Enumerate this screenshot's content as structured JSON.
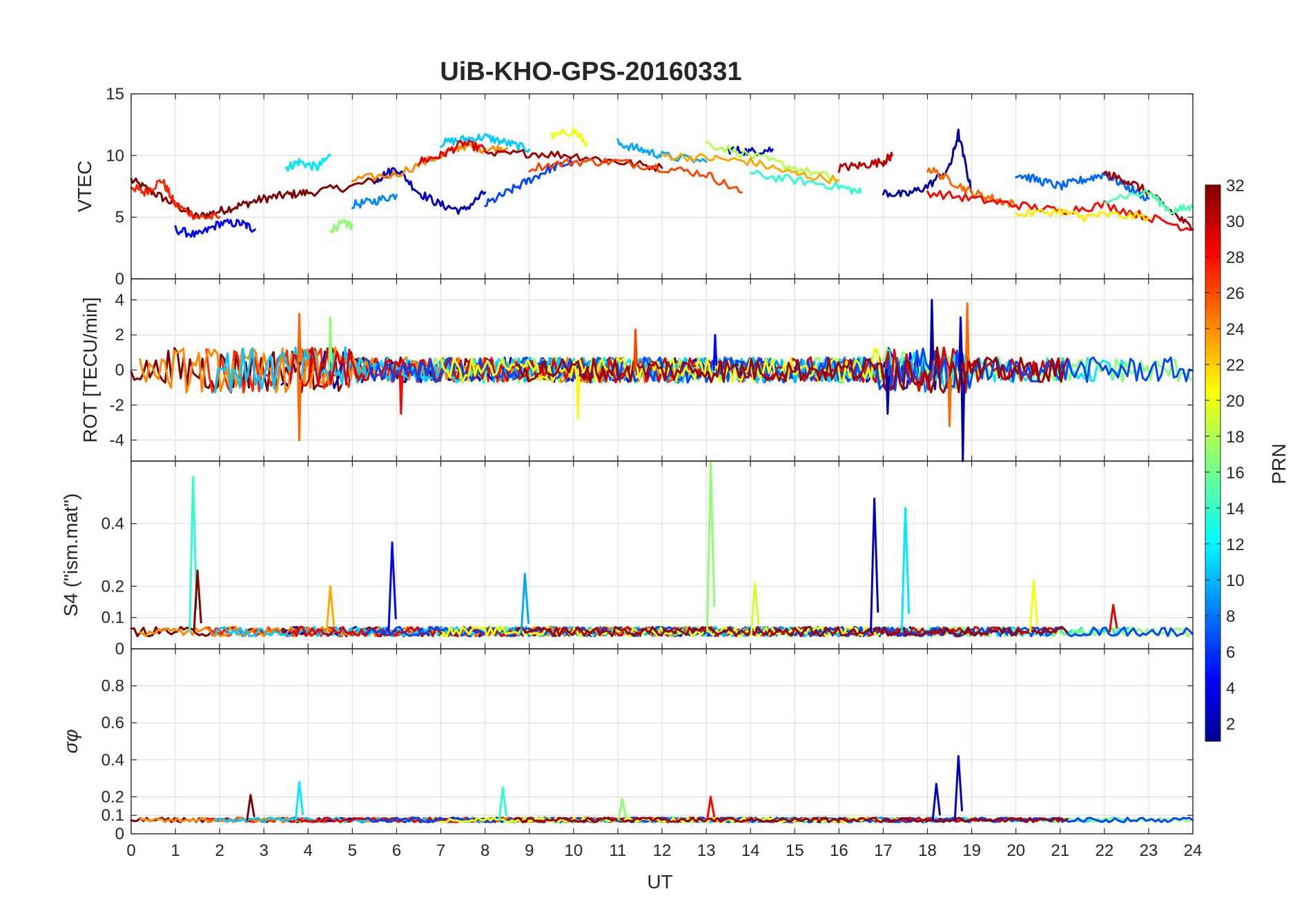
{
  "chart_data": {
    "title": "UiB-KHO-GPS-20160331",
    "type": "line",
    "x_axis": {
      "label": "UT",
      "range": [
        0,
        24
      ],
      "ticks": [
        0,
        1,
        2,
        3,
        4,
        5,
        6,
        7,
        8,
        9,
        10,
        11,
        12,
        13,
        14,
        15,
        16,
        17,
        18,
        19,
        20,
        21,
        22,
        23,
        24
      ]
    },
    "grid": true,
    "colorbar": {
      "label": "PRN",
      "placement": "right",
      "range": [
        1,
        32
      ],
      "ticks": [
        2,
        4,
        6,
        8,
        10,
        12,
        14,
        16,
        18,
        20,
        22,
        24,
        26,
        28,
        30,
        32
      ],
      "colormap": "jet"
    },
    "panels": [
      {
        "id": "vtec",
        "ylabel": "VTEC",
        "ylim": [
          0,
          15
        ],
        "yticks": [
          0,
          5,
          10,
          15
        ],
        "series": [
          {
            "prn": 32,
            "x": [
              0,
              0.5,
              1,
              1.5,
              2,
              2.5,
              3,
              3.5,
              4,
              5,
              6
            ],
            "y": [
              8,
              7,
              6,
              5,
              5.5,
              6,
              6.5,
              6.8,
              7,
              7.5,
              8.5
            ]
          },
          {
            "prn": 27,
            "x": [
              0,
              0.3,
              0.7,
              1,
              1.5,
              2
            ],
            "y": [
              7.5,
              7,
              8,
              6,
              5,
              5
            ]
          },
          {
            "prn": 5,
            "x": [
              1,
              1.5,
              2,
              2.5,
              2.8
            ],
            "y": [
              4,
              3.5,
              4.5,
              4.5,
              4
            ]
          },
          {
            "prn": 12,
            "x": [
              3.5,
              3.8,
              4.2,
              4.5
            ],
            "y": [
              9,
              9.5,
              9,
              10
            ]
          },
          {
            "prn": 17,
            "x": [
              4.5,
              4.8,
              5
            ],
            "y": [
              4,
              4.5,
              4.3
            ]
          },
          {
            "prn": 9,
            "x": [
              5,
              5.5,
              6
            ],
            "y": [
              6,
              6.3,
              6.8
            ]
          },
          {
            "prn": 3,
            "x": [
              5.5,
              6,
              6.5,
              7,
              7.5,
              8
            ],
            "y": [
              8,
              9,
              7,
              6,
              5.5,
              7
            ]
          },
          {
            "prn": 24,
            "x": [
              5,
              6,
              7,
              7.5,
              8,
              8.5
            ],
            "y": [
              8,
              8.5,
              10,
              10.8,
              10.5,
              10.6
            ]
          },
          {
            "prn": 11,
            "x": [
              7,
              7.5,
              8,
              8.5,
              9
            ],
            "y": [
              11,
              11.3,
              11.5,
              11,
              10.5
            ]
          },
          {
            "prn": 29,
            "x": [
              6.5,
              7,
              7.5,
              8
            ],
            "y": [
              9.5,
              10,
              11,
              10.5
            ]
          },
          {
            "prn": 7,
            "x": [
              8,
              8.5,
              9,
              9.5,
              10
            ],
            "y": [
              6,
              7,
              8,
              9,
              9.5
            ]
          },
          {
            "prn": 20,
            "x": [
              9.5,
              10,
              10.3
            ],
            "y": [
              11.5,
              12,
              11
            ]
          },
          {
            "prn": 31,
            "x": [
              8,
              9,
              10,
              11,
              12
            ],
            "y": [
              10,
              10.2,
              10,
              9.5,
              9
            ]
          },
          {
            "prn": 26,
            "x": [
              9,
              10,
              11,
              12,
              13,
              13.8
            ],
            "y": [
              9,
              9.5,
              9.5,
              9,
              8.5,
              7
            ]
          },
          {
            "prn": 10,
            "x": [
              11,
              11.5,
              12,
              13
            ],
            "y": [
              11,
              10.5,
              10,
              9.5
            ]
          },
          {
            "prn": 4,
            "x": [
              13.5,
              14,
              14.5
            ],
            "y": [
              10.5,
              10.3,
              10.5
            ]
          },
          {
            "prn": 18,
            "x": [
              13,
              14,
              15,
              16
            ],
            "y": [
              11,
              10,
              9,
              8
            ]
          },
          {
            "prn": 14,
            "x": [
              14,
              15,
              16,
              16.5
            ],
            "y": [
              8.5,
              8,
              7.5,
              7
            ]
          },
          {
            "prn": 23,
            "x": [
              12,
              13,
              14,
              15,
              16
            ],
            "y": [
              10,
              9.8,
              9.5,
              8.5,
              8
            ]
          },
          {
            "prn": 30,
            "x": [
              16,
              16.5,
              17,
              17.2
            ],
            "y": [
              9,
              9.2,
              9.5,
              10
            ]
          },
          {
            "prn": 2,
            "x": [
              17,
              17.5,
              18,
              18.5,
              18.7,
              19
            ],
            "y": [
              7,
              6.8,
              7.5,
              9,
              11.8,
              7
            ]
          },
          {
            "prn": 25,
            "x": [
              18,
              18.5,
              19,
              19.5,
              20
            ],
            "y": [
              9,
              8,
              7,
              6.5,
              6
            ]
          },
          {
            "prn": 28,
            "x": [
              18,
              19,
              20,
              21,
              22,
              23,
              24
            ],
            "y": [
              7,
              6.5,
              6,
              5.5,
              6,
              5,
              4
            ]
          },
          {
            "prn": 8,
            "x": [
              20,
              20.5,
              21,
              21.5,
              22,
              22.5,
              23
            ],
            "y": [
              8.5,
              8,
              7.5,
              8,
              8.5,
              7.5,
              6.5
            ]
          },
          {
            "prn": 21,
            "x": [
              20,
              21,
              21.5,
              22,
              23
            ],
            "y": [
              5.2,
              5.5,
              5,
              5.2,
              5
            ]
          },
          {
            "prn": 31,
            "x": [
              22,
              22.5,
              23,
              23.5,
              24
            ],
            "y": [
              8.5,
              8,
              7,
              5.5,
              4
            ]
          },
          {
            "prn": 15,
            "x": [
              22,
              23,
              23.5,
              24
            ],
            "y": [
              6.5,
              7,
              5.5,
              5.8
            ]
          }
        ]
      },
      {
        "id": "rot",
        "ylabel": "ROT [TECU/min]",
        "ylim": [
          -5.2,
          5.2
        ],
        "yticks": [
          -4,
          -2,
          0,
          2,
          4
        ],
        "spikes": [
          {
            "prn": 25,
            "x": 3.8,
            "y": 3.2
          },
          {
            "prn": 25,
            "x": 3.8,
            "y": -4
          },
          {
            "prn": 17,
            "x": 4.5,
            "y": 3
          },
          {
            "prn": 28,
            "x": 6.1,
            "y": -2.5
          },
          {
            "prn": 20,
            "x": 10.1,
            "y": -2.8
          },
          {
            "prn": 26,
            "x": 11.4,
            "y": 2.3
          },
          {
            "prn": 5,
            "x": 13.2,
            "y": 2
          },
          {
            "prn": 2,
            "x": 17.1,
            "y": -2.5
          },
          {
            "prn": 2,
            "x": 18.1,
            "y": 4
          },
          {
            "prn": 25,
            "x": 18.5,
            "y": -3.2
          },
          {
            "prn": 2,
            "x": 18.8,
            "y": -5.2
          },
          {
            "prn": 25,
            "x": 18.9,
            "y": 3.8
          },
          {
            "prn": 3,
            "x": 18.75,
            "y": 3
          }
        ]
      },
      {
        "id": "s4",
        "ylabel": "S4 (\"ism.mat\")",
        "ylim": [
          0,
          0.6
        ],
        "yticks": [
          0,
          0.1,
          0.2,
          0.4
        ],
        "spikes": [
          {
            "prn": 14,
            "x": 1.4,
            "y": 0.55
          },
          {
            "prn": 32,
            "x": 1.5,
            "y": 0.25
          },
          {
            "prn": 23,
            "x": 4.5,
            "y": 0.2
          },
          {
            "prn": 5,
            "x": 5.9,
            "y": 0.34
          },
          {
            "prn": 10,
            "x": 8.9,
            "y": 0.24
          },
          {
            "prn": 17,
            "x": 13.1,
            "y": 0.6
          },
          {
            "prn": 19,
            "x": 14.1,
            "y": 0.21
          },
          {
            "prn": 3,
            "x": 16.8,
            "y": 0.48
          },
          {
            "prn": 12,
            "x": 17.5,
            "y": 0.45
          },
          {
            "prn": 20,
            "x": 20.4,
            "y": 0.22
          },
          {
            "prn": 29,
            "x": 22.2,
            "y": 0.14
          }
        ]
      },
      {
        "id": "sigma_phi",
        "ylabel": "σφ",
        "ylim": [
          0,
          1
        ],
        "yticks": [
          0,
          0.1,
          0.2,
          0.4,
          0.6,
          0.8
        ],
        "spikes": [
          {
            "prn": 32,
            "x": 2.7,
            "y": 0.21
          },
          {
            "prn": 12,
            "x": 3.8,
            "y": 0.28
          },
          {
            "prn": 14,
            "x": 8.4,
            "y": 0.25
          },
          {
            "prn": 17,
            "x": 11.1,
            "y": 0.19
          },
          {
            "prn": 28,
            "x": 13.1,
            "y": 0.2
          },
          {
            "prn": 3,
            "x": 18.2,
            "y": 0.27
          },
          {
            "prn": 3,
            "x": 18.7,
            "y": 0.42
          }
        ]
      }
    ]
  }
}
